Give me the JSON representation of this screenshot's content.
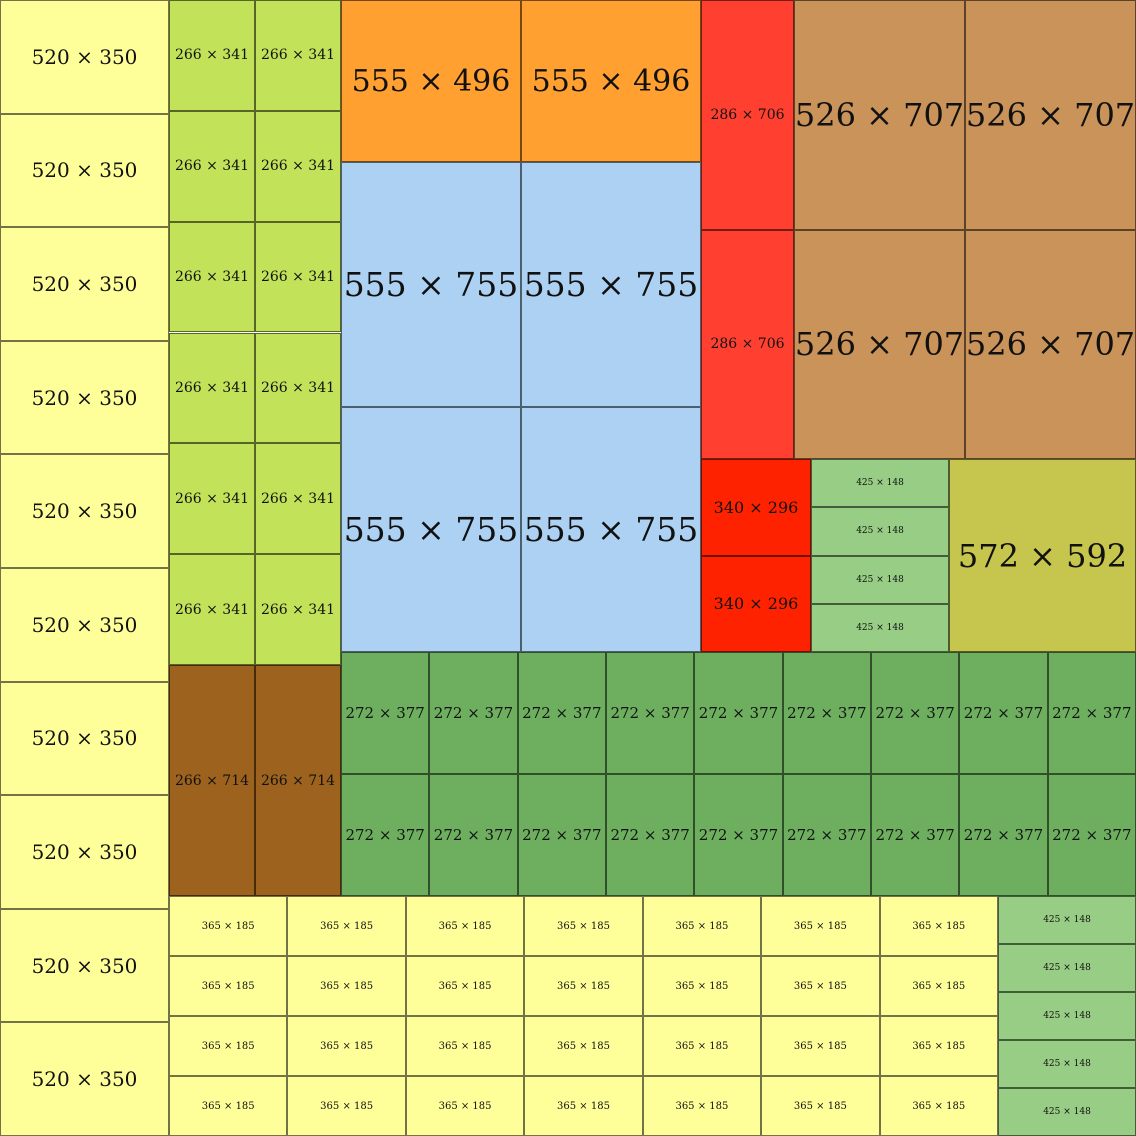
{
  "palette": {
    "pale_yellow": "#ffff99",
    "lime_green": "#c2e25a",
    "orange": "#ffa030",
    "light_blue": "#acd1f2",
    "red": "#ff4030",
    "bright_red": "#ff2200",
    "tan": "#c9935a",
    "light_green": "#98cd85",
    "olive": "#c6c54d",
    "brown": "#9c621e",
    "medium_green": "#6daf5f"
  },
  "groups": [
    {
      "id": "g520x350",
      "label": "520 × 350",
      "color": "pale_yellow",
      "count": 10
    },
    {
      "id": "g266x341",
      "label": "266 × 341",
      "color": "lime_green",
      "count": 12
    },
    {
      "id": "g266x714",
      "label": "266 × 714",
      "color": "brown",
      "count": 2
    },
    {
      "id": "g555x496",
      "label": "555 × 496",
      "color": "orange",
      "count": 2
    },
    {
      "id": "g555x755",
      "label": "555 × 755",
      "color": "light_blue",
      "count": 4
    },
    {
      "id": "g286x706",
      "label": "286 × 706",
      "color": "red",
      "count": 2
    },
    {
      "id": "g526x707",
      "label": "526 × 707",
      "color": "tan",
      "count": 4
    },
    {
      "id": "g340x296",
      "label": "340 × 296",
      "color": "bright_red",
      "count": 2
    },
    {
      "id": "g425x148",
      "label": "425 × 148",
      "color": "light_green",
      "count": 9
    },
    {
      "id": "g572x592",
      "label": "572 × 592",
      "color": "olive",
      "count": 1
    },
    {
      "id": "g272x377",
      "label": "272 × 377",
      "color": "medium_green",
      "count": 18
    },
    {
      "id": "g365x185",
      "label": "365 × 185",
      "color": "pale_yellow",
      "count": 28
    }
  ]
}
